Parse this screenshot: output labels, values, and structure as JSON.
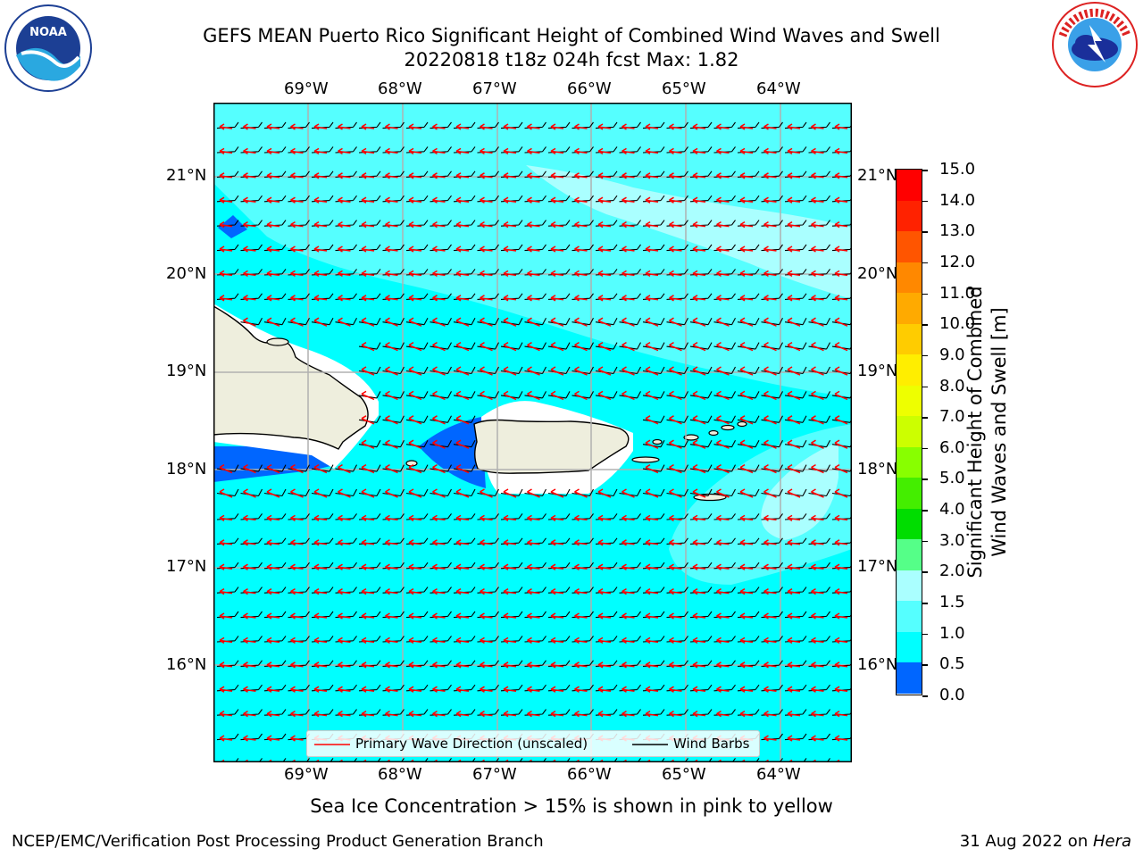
{
  "header": {
    "title_line1": "GEFS MEAN Puerto Rico Significant Height of Combined Wind Waves and Swell",
    "title_line2": "20220818 t18z 024h fcst   Max: 1.82"
  },
  "logos": {
    "left_text": "NOAA",
    "left_ring": "NATIONAL OCEANIC AND ATMOSPHERIC ADMINISTRATION · U.S. DEPARTMENT OF COMMERCE",
    "right_ring": "NATIONAL WEATHER SERVICE"
  },
  "map": {
    "lon_labels": [
      "69°W",
      "68°W",
      "67°W",
      "66°W",
      "65°W",
      "64°W"
    ],
    "lat_labels": [
      "21°N",
      "20°N",
      "19°N",
      "18°N",
      "17°N",
      "16°N"
    ],
    "field_colors": {
      "ocean_1_5": "#00ffff",
      "ocean_1_5_2": "#55ffff",
      "ocean_2_3": "#aaffff",
      "low_0_5_1": "#0066ff",
      "land": "#eeeedd"
    },
    "legend": {
      "wave_label": "Primary Wave Direction (unscaled)",
      "barb_label": "Wind Barbs",
      "wave_color": "#ff0000",
      "barb_color": "#000000"
    }
  },
  "colorbar": {
    "label_line1": "Significant Height of Combined",
    "label_line2": "Wind Waves and Swell [m]",
    "ticks": [
      "15.0",
      "14.0",
      "13.0",
      "12.0",
      "11.0",
      "10.0",
      "9.0",
      "8.0",
      "7.0",
      "6.0",
      "5.0",
      "4.0",
      "3.0",
      "2.0",
      "1.5",
      "1.0",
      "0.5",
      "0.0"
    ],
    "colors_top_to_bottom": [
      "#ff0000",
      "#ff2200",
      "#ff5500",
      "#ff8800",
      "#ffaa00",
      "#ffcc00",
      "#ffee00",
      "#eeff00",
      "#ccff00",
      "#88ff00",
      "#44ee00",
      "#00dd00",
      "#55ff88",
      "#aaffff",
      "#55ffff",
      "#00ffff",
      "#0066ff",
      "#0000ff"
    ]
  },
  "footer": {
    "ice_note": "Sea Ice Concentration > 15% is shown in pink to yellow",
    "left": "NCEP/EMC/Verification Post Processing Product Generation Branch",
    "right_prefix": "31 Aug 2022 on ",
    "right_italic": "Hera"
  }
}
